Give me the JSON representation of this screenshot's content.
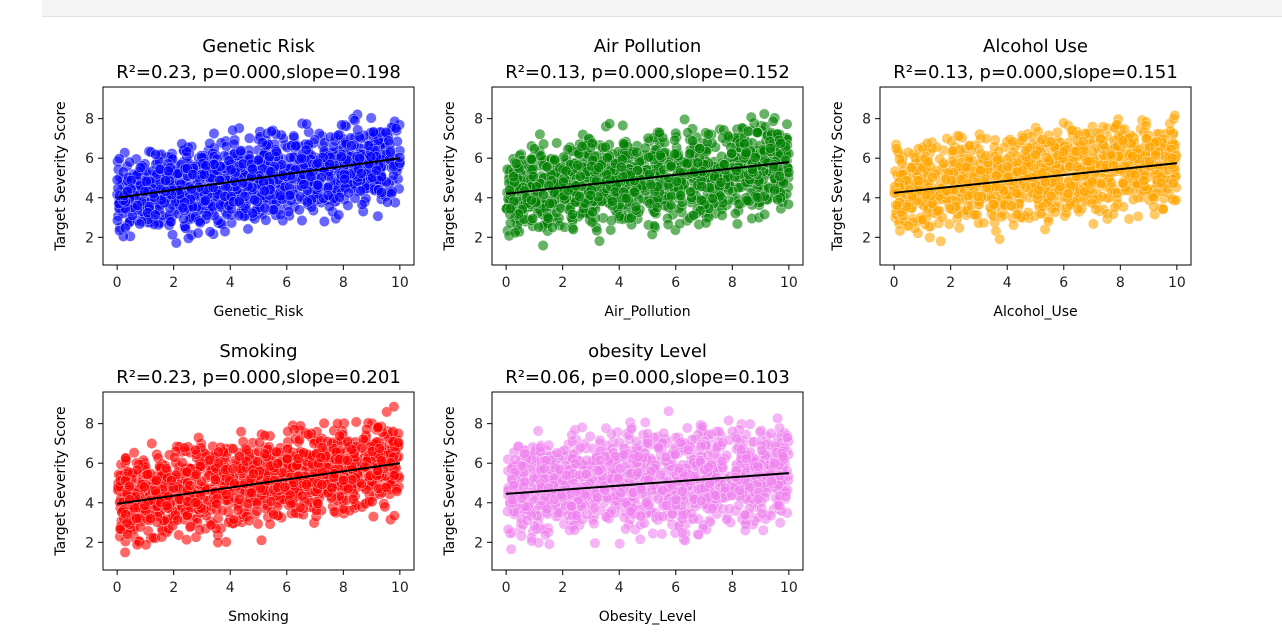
{
  "chart_data": [
    {
      "type": "scatter",
      "title": "Genetic Risk",
      "subtitle": "R²=0.23, p=0.000,slope=0.198",
      "xlabel": "Genetic_Risk",
      "ylabel": "Target Severity Score",
      "xlim": [
        -0.5,
        10.5
      ],
      "ylim": [
        0.6,
        9.6
      ],
      "x_ticks": [
        0,
        2,
        4,
        6,
        8,
        10
      ],
      "y_ticks": [
        2,
        4,
        6,
        8
      ],
      "color": "#0000ff",
      "x_range": [
        0,
        10
      ],
      "y_band": {
        "low_at_0": 1.0,
        "high_at_0": 7.1,
        "low_at_10": 2.8,
        "high_at_10": 9.0
      },
      "fit_line": {
        "x": [
          0,
          10
        ],
        "y": [
          4.0,
          6.0
        ],
        "color": "#000000"
      }
    },
    {
      "type": "scatter",
      "title": "Air Pollution",
      "subtitle": "R²=0.13, p=0.000,slope=0.152",
      "xlabel": "Air_Pollution",
      "ylabel": "Target Severity Score",
      "xlim": [
        -0.5,
        10.5
      ],
      "ylim": [
        0.6,
        9.6
      ],
      "x_ticks": [
        0,
        2,
        4,
        6,
        8,
        10
      ],
      "y_ticks": [
        2,
        4,
        6,
        8
      ],
      "color": "#008000",
      "x_range": [
        0,
        10
      ],
      "y_band": {
        "low_at_0": 1.1,
        "high_at_0": 7.4,
        "low_at_10": 2.2,
        "high_at_10": 9.1
      },
      "fit_line": {
        "x": [
          0,
          10
        ],
        "y": [
          4.2,
          5.8
        ],
        "color": "#000000"
      }
    },
    {
      "type": "scatter",
      "title": "Alcohol Use",
      "subtitle": "R²=0.13, p=0.000,slope=0.151",
      "xlabel": "Alcohol_Use",
      "ylabel": "Target Severity Score",
      "xlim": [
        -0.5,
        10.5
      ],
      "ylim": [
        0.6,
        9.6
      ],
      "x_ticks": [
        0,
        2,
        4,
        6,
        8,
        10
      ],
      "y_ticks": [
        2,
        4,
        6,
        8
      ],
      "color": "#ffa500",
      "x_range": [
        0,
        10
      ],
      "y_band": {
        "low_at_0": 1.2,
        "high_at_0": 7.5,
        "low_at_10": 2.6,
        "high_at_10": 9.0
      },
      "fit_line": {
        "x": [
          0,
          10
        ],
        "y": [
          4.25,
          5.75
        ],
        "color": "#000000"
      }
    },
    {
      "type": "scatter",
      "title": "Smoking",
      "subtitle": "R²=0.23, p=0.000,slope=0.201",
      "xlabel": "Smoking",
      "ylabel": "Target Severity Score",
      "xlim": [
        -0.5,
        10.5
      ],
      "ylim": [
        0.6,
        9.6
      ],
      "x_ticks": [
        0,
        2,
        4,
        6,
        8,
        10
      ],
      "y_ticks": [
        2,
        4,
        6,
        8
      ],
      "color": "#ff0000",
      "x_range": [
        0,
        10
      ],
      "y_band": {
        "low_at_0": 1.0,
        "high_at_0": 7.2,
        "low_at_10": 2.9,
        "high_at_10": 9.1
      },
      "fit_line": {
        "x": [
          0,
          10
        ],
        "y": [
          3.95,
          6.0
        ],
        "color": "#000000"
      }
    },
    {
      "type": "scatter",
      "title": "obesity Level",
      "subtitle": "R²=0.06, p=0.000,slope=0.103",
      "xlabel": "Obesity_Level",
      "ylabel": "Target Severity Score",
      "xlim": [
        -0.5,
        10.5
      ],
      "ylim": [
        0.6,
        9.6
      ],
      "x_ticks": [
        0,
        2,
        4,
        6,
        8,
        10
      ],
      "y_ticks": [
        2,
        4,
        6,
        8
      ],
      "color": "#ee82ee",
      "x_range": [
        0,
        10
      ],
      "y_band": {
        "low_at_0": 1.1,
        "high_at_0": 8.4,
        "low_at_10": 1.8,
        "high_at_10": 9.1
      },
      "fit_line": {
        "x": [
          0,
          10
        ],
        "y": [
          4.45,
          5.5
        ],
        "color": "#000000"
      }
    }
  ]
}
